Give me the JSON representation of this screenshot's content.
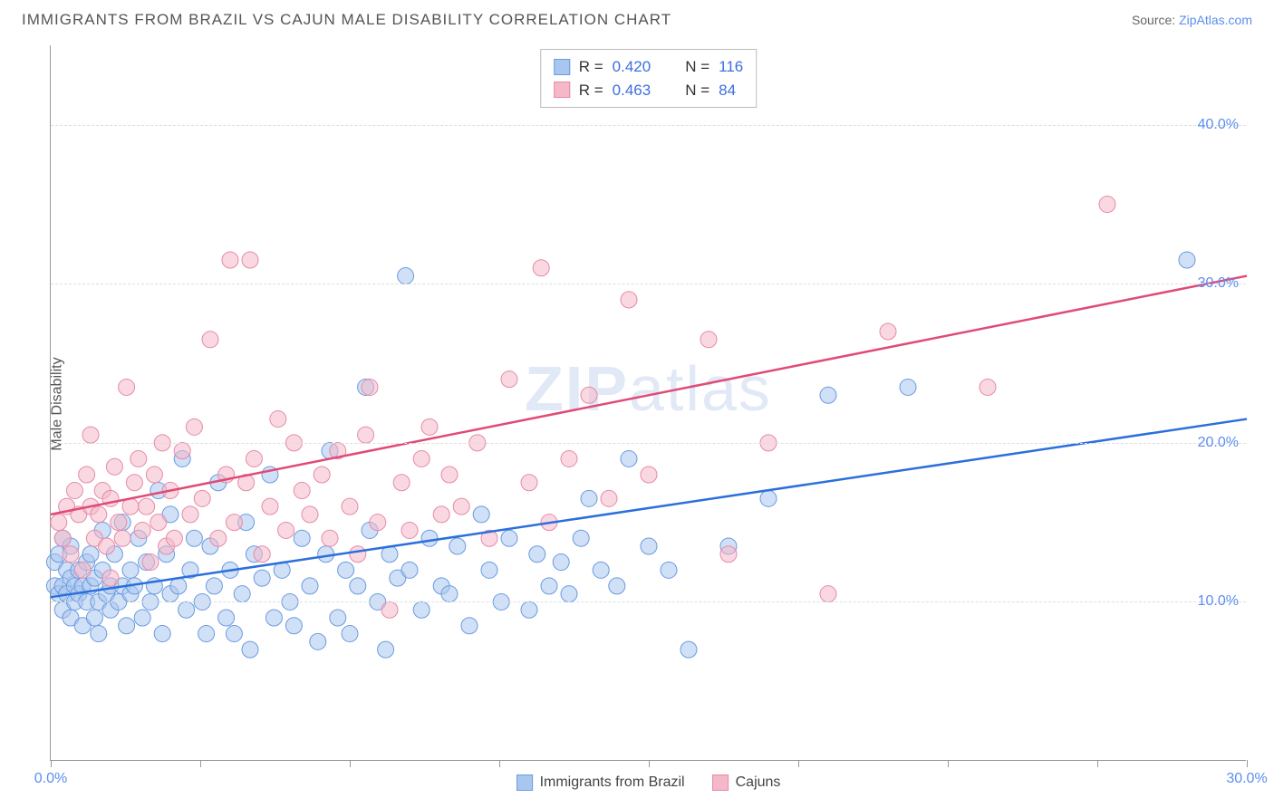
{
  "title": "IMMIGRANTS FROM BRAZIL VS CAJUN MALE DISABILITY CORRELATION CHART",
  "source_label": "Source: ",
  "source_name": "ZipAtlas.com",
  "ylabel": "Male Disability",
  "watermark_bold": "ZIP",
  "watermark_thin": "atlas",
  "chart": {
    "type": "scatter",
    "xlim": [
      0,
      30
    ],
    "ylim": [
      0,
      45
    ],
    "xtick_positions": [
      0,
      3.75,
      7.5,
      11.25,
      15,
      18.75,
      22.5,
      26.25,
      30
    ],
    "xtick_labels": {
      "0": "0.0%",
      "30": "30.0%"
    },
    "ytick_positions": [
      10,
      20,
      30,
      40
    ],
    "ytick_labels": [
      "10.0%",
      "20.0%",
      "30.0%",
      "40.0%"
    ],
    "grid_color": "#dddddd",
    "background_color": "#ffffff",
    "marker_radius": 9,
    "marker_opacity": 0.55,
    "line_width": 2.5,
    "series": [
      {
        "name": "Immigrants from Brazil",
        "color_fill": "#a9c6ef",
        "color_stroke": "#6a9be0",
        "line_color": "#2b6fdc",
        "R": "0.420",
        "N": "116",
        "trend": {
          "x1": 0,
          "y1": 10.3,
          "x2": 30,
          "y2": 21.5
        },
        "points": [
          [
            0.1,
            11.0
          ],
          [
            0.1,
            12.5
          ],
          [
            0.2,
            10.5
          ],
          [
            0.2,
            13.0
          ],
          [
            0.3,
            11.0
          ],
          [
            0.3,
            9.5
          ],
          [
            0.3,
            14.0
          ],
          [
            0.4,
            10.5
          ],
          [
            0.4,
            12.0
          ],
          [
            0.5,
            11.5
          ],
          [
            0.5,
            9.0
          ],
          [
            0.5,
            13.5
          ],
          [
            0.6,
            10.0
          ],
          [
            0.6,
            11.0
          ],
          [
            0.7,
            12.0
          ],
          [
            0.7,
            10.5
          ],
          [
            0.8,
            11.0
          ],
          [
            0.8,
            8.5
          ],
          [
            0.9,
            12.5
          ],
          [
            0.9,
            10.0
          ],
          [
            1.0,
            11.0
          ],
          [
            1.0,
            13.0
          ],
          [
            1.1,
            9.0
          ],
          [
            1.1,
            11.5
          ],
          [
            1.2,
            10.0
          ],
          [
            1.2,
            8.0
          ],
          [
            1.3,
            12.0
          ],
          [
            1.3,
            14.5
          ],
          [
            1.4,
            10.5
          ],
          [
            1.5,
            11.0
          ],
          [
            1.5,
            9.5
          ],
          [
            1.6,
            13.0
          ],
          [
            1.7,
            10.0
          ],
          [
            1.8,
            15.0
          ],
          [
            1.8,
            11.0
          ],
          [
            1.9,
            8.5
          ],
          [
            2.0,
            12.0
          ],
          [
            2.0,
            10.5
          ],
          [
            2.1,
            11.0
          ],
          [
            2.2,
            14.0
          ],
          [
            2.3,
            9.0
          ],
          [
            2.4,
            12.5
          ],
          [
            2.5,
            10.0
          ],
          [
            2.6,
            11.0
          ],
          [
            2.7,
            17.0
          ],
          [
            2.8,
            8.0
          ],
          [
            2.9,
            13.0
          ],
          [
            3.0,
            10.5
          ],
          [
            3.0,
            15.5
          ],
          [
            3.2,
            11.0
          ],
          [
            3.3,
            19.0
          ],
          [
            3.4,
            9.5
          ],
          [
            3.5,
            12.0
          ],
          [
            3.6,
            14.0
          ],
          [
            3.8,
            10.0
          ],
          [
            3.9,
            8.0
          ],
          [
            4.0,
            13.5
          ],
          [
            4.1,
            11.0
          ],
          [
            4.2,
            17.5
          ],
          [
            4.4,
            9.0
          ],
          [
            4.5,
            12.0
          ],
          [
            4.6,
            8.0
          ],
          [
            4.8,
            10.5
          ],
          [
            4.9,
            15.0
          ],
          [
            5.0,
            7.0
          ],
          [
            5.1,
            13.0
          ],
          [
            5.3,
            11.5
          ],
          [
            5.5,
            18.0
          ],
          [
            5.6,
            9.0
          ],
          [
            5.8,
            12.0
          ],
          [
            6.0,
            10.0
          ],
          [
            6.1,
            8.5
          ],
          [
            6.3,
            14.0
          ],
          [
            6.5,
            11.0
          ],
          [
            6.7,
            7.5
          ],
          [
            6.9,
            13.0
          ],
          [
            7.0,
            19.5
          ],
          [
            7.2,
            9.0
          ],
          [
            7.4,
            12.0
          ],
          [
            7.5,
            8.0
          ],
          [
            7.7,
            11.0
          ],
          [
            7.9,
            23.5
          ],
          [
            8.0,
            14.5
          ],
          [
            8.2,
            10.0
          ],
          [
            8.4,
            7.0
          ],
          [
            8.5,
            13.0
          ],
          [
            8.7,
            11.5
          ],
          [
            8.9,
            30.5
          ],
          [
            9.0,
            12.0
          ],
          [
            9.3,
            9.5
          ],
          [
            9.5,
            14.0
          ],
          [
            9.8,
            11.0
          ],
          [
            10.0,
            10.5
          ],
          [
            10.2,
            13.5
          ],
          [
            10.5,
            8.5
          ],
          [
            10.8,
            15.5
          ],
          [
            11.0,
            12.0
          ],
          [
            11.3,
            10.0
          ],
          [
            11.5,
            14.0
          ],
          [
            12.0,
            9.5
          ],
          [
            12.2,
            13.0
          ],
          [
            12.5,
            11.0
          ],
          [
            12.8,
            12.5
          ],
          [
            13.0,
            10.5
          ],
          [
            13.3,
            14.0
          ],
          [
            13.5,
            16.5
          ],
          [
            13.8,
            12.0
          ],
          [
            14.2,
            11.0
          ],
          [
            14.5,
            19.0
          ],
          [
            15.0,
            13.5
          ],
          [
            15.5,
            12.0
          ],
          [
            16.0,
            7.0
          ],
          [
            17.0,
            13.5
          ],
          [
            18.0,
            16.5
          ],
          [
            19.5,
            23.0
          ],
          [
            21.5,
            23.5
          ],
          [
            28.5,
            31.5
          ]
        ]
      },
      {
        "name": "Cajuns",
        "color_fill": "#f5b8c8",
        "color_stroke": "#e68aa6",
        "line_color": "#e14a76",
        "R": "0.463",
        "N": "84",
        "trend": {
          "x1": 0,
          "y1": 15.5,
          "x2": 30,
          "y2": 30.5
        },
        "points": [
          [
            0.2,
            15.0
          ],
          [
            0.3,
            14.0
          ],
          [
            0.4,
            16.0
          ],
          [
            0.5,
            13.0
          ],
          [
            0.6,
            17.0
          ],
          [
            0.7,
            15.5
          ],
          [
            0.8,
            12.0
          ],
          [
            0.9,
            18.0
          ],
          [
            1.0,
            16.0
          ],
          [
            1.0,
            20.5
          ],
          [
            1.1,
            14.0
          ],
          [
            1.2,
            15.5
          ],
          [
            1.3,
            17.0
          ],
          [
            1.4,
            13.5
          ],
          [
            1.5,
            16.5
          ],
          [
            1.5,
            11.5
          ],
          [
            1.6,
            18.5
          ],
          [
            1.7,
            15.0
          ],
          [
            1.8,
            14.0
          ],
          [
            1.9,
            23.5
          ],
          [
            2.0,
            16.0
          ],
          [
            2.1,
            17.5
          ],
          [
            2.2,
            19.0
          ],
          [
            2.3,
            14.5
          ],
          [
            2.4,
            16.0
          ],
          [
            2.5,
            12.5
          ],
          [
            2.6,
            18.0
          ],
          [
            2.7,
            15.0
          ],
          [
            2.8,
            20.0
          ],
          [
            2.9,
            13.5
          ],
          [
            3.0,
            17.0
          ],
          [
            3.1,
            14.0
          ],
          [
            3.3,
            19.5
          ],
          [
            3.5,
            15.5
          ],
          [
            3.6,
            21.0
          ],
          [
            3.8,
            16.5
          ],
          [
            4.0,
            26.5
          ],
          [
            4.2,
            14.0
          ],
          [
            4.4,
            18.0
          ],
          [
            4.5,
            31.5
          ],
          [
            4.6,
            15.0
          ],
          [
            4.9,
            17.5
          ],
          [
            5.0,
            31.5
          ],
          [
            5.1,
            19.0
          ],
          [
            5.3,
            13.0
          ],
          [
            5.5,
            16.0
          ],
          [
            5.7,
            21.5
          ],
          [
            5.9,
            14.5
          ],
          [
            6.1,
            20.0
          ],
          [
            6.3,
            17.0
          ],
          [
            6.5,
            15.5
          ],
          [
            6.8,
            18.0
          ],
          [
            7.0,
            14.0
          ],
          [
            7.2,
            19.5
          ],
          [
            7.5,
            16.0
          ],
          [
            7.7,
            13.0
          ],
          [
            7.9,
            20.5
          ],
          [
            8.0,
            23.5
          ],
          [
            8.2,
            15.0
          ],
          [
            8.5,
            9.5
          ],
          [
            8.8,
            17.5
          ],
          [
            9.0,
            14.5
          ],
          [
            9.3,
            19.0
          ],
          [
            9.5,
            21.0
          ],
          [
            9.8,
            15.5
          ],
          [
            10.0,
            18.0
          ],
          [
            10.3,
            16.0
          ],
          [
            10.7,
            20.0
          ],
          [
            11.0,
            14.0
          ],
          [
            11.5,
            24.0
          ],
          [
            12.0,
            17.5
          ],
          [
            12.3,
            31.0
          ],
          [
            12.5,
            15.0
          ],
          [
            13.0,
            19.0
          ],
          [
            13.5,
            23.0
          ],
          [
            14.0,
            16.5
          ],
          [
            14.5,
            29.0
          ],
          [
            15.0,
            18.0
          ],
          [
            16.5,
            26.5
          ],
          [
            17.0,
            13.0
          ],
          [
            18.0,
            20.0
          ],
          [
            19.5,
            10.5
          ],
          [
            21.0,
            27.0
          ],
          [
            23.5,
            23.5
          ],
          [
            26.5,
            35.0
          ]
        ]
      }
    ]
  },
  "colors": {
    "title_text": "#555555",
    "axis_text": "#555555",
    "tick_text": "#5b8def",
    "source_link": "#5b8def",
    "watermark": "#c9d7ef"
  }
}
